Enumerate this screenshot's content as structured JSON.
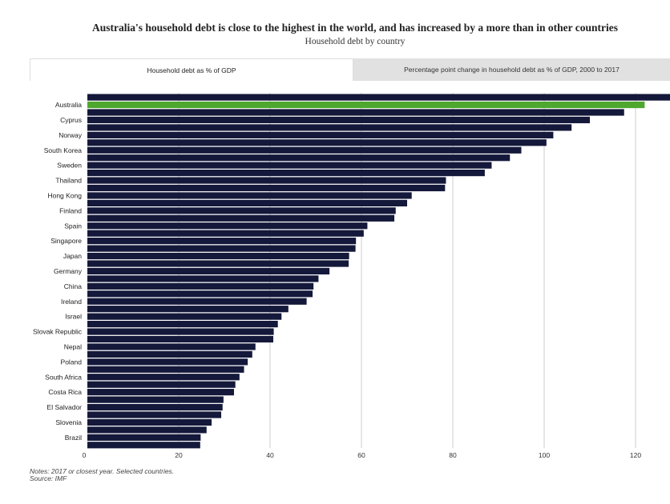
{
  "title": "Australia's household debt is close to the highest in the world, and has increased by a more than in other countries",
  "subtitle": "Household debt by country",
  "tabs": [
    {
      "label": "Household debt as % of GDP",
      "active": true
    },
    {
      "label": "Percentage point change in household debt as % of GDP, 2000 to 2017",
      "active": false
    }
  ],
  "notes": "Notes: 2017 or closest year. Selected countries.",
  "source": "Source: IMF",
  "chart_data": {
    "type": "bar",
    "orientation": "horizontal",
    "xlim": [
      0,
      130
    ],
    "x_ticks": [
      0,
      20,
      40,
      60,
      80,
      100,
      120
    ],
    "grid": true,
    "colors": {
      "bar": "#14183a",
      "highlight": "#4ea72e",
      "grid": "#cccccc"
    },
    "highlight_label": "Australia",
    "bars": [
      {
        "label": "",
        "value": 130
      },
      {
        "label": "Australia",
        "value": 122
      },
      {
        "label": "",
        "value": 117.5
      },
      {
        "label": "Cyprus",
        "value": 110
      },
      {
        "label": "",
        "value": 106
      },
      {
        "label": "Norway",
        "value": 102
      },
      {
        "label": "",
        "value": 100.5
      },
      {
        "label": "South Korea",
        "value": 95
      },
      {
        "label": "",
        "value": 92.5
      },
      {
        "label": "Sweden",
        "value": 88.5
      },
      {
        "label": "",
        "value": 87
      },
      {
        "label": "Thailand",
        "value": 78.5
      },
      {
        "label": "",
        "value": 78.3
      },
      {
        "label": "Hong Kong",
        "value": 71
      },
      {
        "label": "",
        "value": 70
      },
      {
        "label": "Finland",
        "value": 67.5
      },
      {
        "label": "",
        "value": 67.2
      },
      {
        "label": "Spain",
        "value": 61.3
      },
      {
        "label": "",
        "value": 60.5
      },
      {
        "label": "Singapore",
        "value": 58.8
      },
      {
        "label": "",
        "value": 58.7
      },
      {
        "label": "Japan",
        "value": 57.3
      },
      {
        "label": "",
        "value": 57.2
      },
      {
        "label": "Germany",
        "value": 53
      },
      {
        "label": "",
        "value": 50.6
      },
      {
        "label": "China",
        "value": 49.5
      },
      {
        "label": "",
        "value": 49.3
      },
      {
        "label": "Ireland",
        "value": 48
      },
      {
        "label": "",
        "value": 44
      },
      {
        "label": "Israel",
        "value": 42.5
      },
      {
        "label": "",
        "value": 41.7
      },
      {
        "label": "Slovak Republic",
        "value": 40.8
      },
      {
        "label": "",
        "value": 40.7
      },
      {
        "label": "Nepal",
        "value": 36.8
      },
      {
        "label": "",
        "value": 36.1
      },
      {
        "label": "Poland",
        "value": 35.1
      },
      {
        "label": "",
        "value": 34.3
      },
      {
        "label": "South Africa",
        "value": 33.3
      },
      {
        "label": "",
        "value": 32.4
      },
      {
        "label": "Costa Rica",
        "value": 32.1
      },
      {
        "label": "",
        "value": 29.8
      },
      {
        "label": "El Salvador",
        "value": 29.6
      },
      {
        "label": "",
        "value": 29.3
      },
      {
        "label": "Slovenia",
        "value": 27.2
      },
      {
        "label": "",
        "value": 26.1
      },
      {
        "label": "Brazil",
        "value": 24.8
      },
      {
        "label": "",
        "value": 24.7
      }
    ]
  }
}
